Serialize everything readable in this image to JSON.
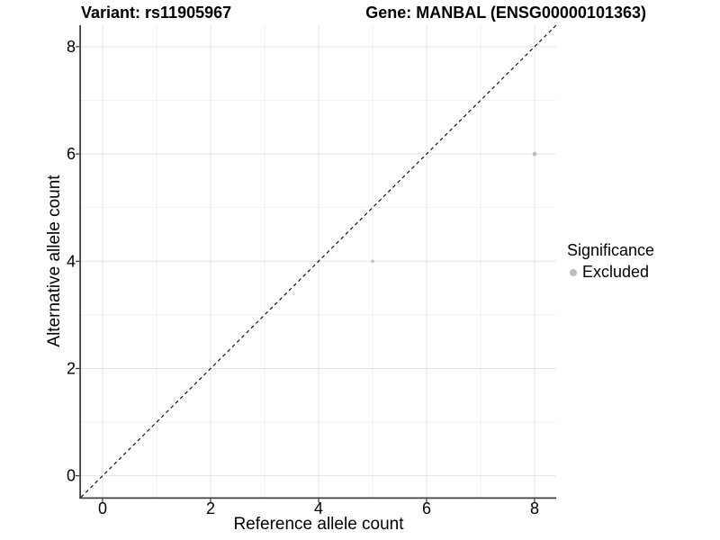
{
  "chart_data": {
    "type": "scatter",
    "titles": {
      "variant": "Variant: rs11905967",
      "gene": "Gene: MANBAL (ENSG00000101363)"
    },
    "xlabel": "Reference allele count",
    "ylabel": "Alternative allele count",
    "xlim": [
      -0.4,
      8.4
    ],
    "ylim": [
      -0.4,
      8.4
    ],
    "xticks": [
      0,
      2,
      4,
      6,
      8
    ],
    "yticks": [
      0,
      2,
      4,
      6,
      8
    ],
    "xminor": [
      1,
      3,
      5,
      7
    ],
    "yminor": [
      1,
      3,
      5,
      7
    ],
    "grid": "major and minor, light gray, on white background",
    "reference_line": {
      "type": "identity",
      "slope": 1,
      "intercept": 0,
      "style": "dashed",
      "color": "#000000"
    },
    "series": [
      {
        "name": "Excluded",
        "color": "#BEBEBE",
        "points": [
          {
            "x": 5,
            "y": 4,
            "radius_px": 1.7
          },
          {
            "x": 8,
            "y": 6,
            "radius_px": 2.4
          }
        ]
      }
    ],
    "legend": {
      "title": "Significance",
      "position": "right",
      "items": [
        {
          "label": "Excluded",
          "color": "#BEBEBE"
        }
      ]
    },
    "colors": {
      "grid_major": "#E2E2E2",
      "grid_minor": "#F2F2F2",
      "axis_line": "#404040",
      "tick_mark": "#333333",
      "text": "#000000",
      "point": "#BEBEBE"
    }
  }
}
